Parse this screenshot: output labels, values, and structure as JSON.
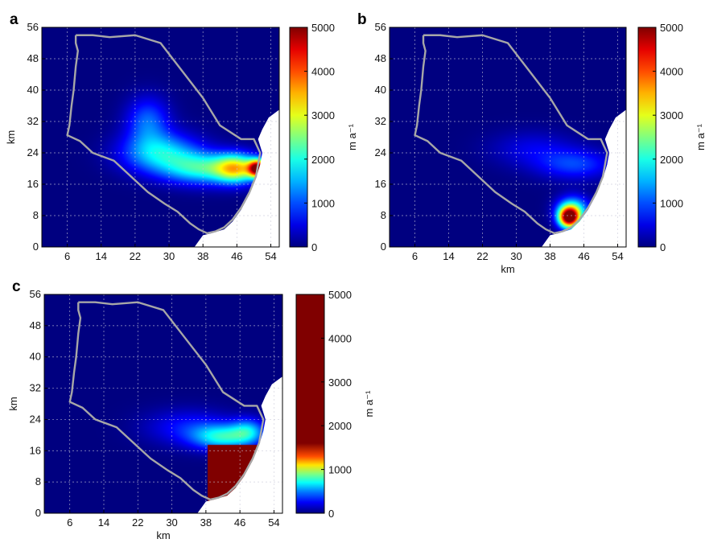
{
  "chart_data": [
    {
      "type": "heatmap",
      "panel_label": "a",
      "xlabel": "",
      "ylabel": "km",
      "xlim": [
        0,
        56
      ],
      "ylim": [
        0,
        56
      ],
      "xticks": [
        6,
        14,
        22,
        30,
        38,
        46,
        54
      ],
      "yticks": [
        0,
        8,
        16,
        24,
        32,
        40,
        48,
        56
      ],
      "grid": true,
      "colorbar": {
        "min": 0,
        "max": 5000,
        "ticks": [
          0,
          1000,
          2000,
          3000,
          4000,
          5000
        ],
        "label": "m a⁻¹",
        "colormap": "jet"
      },
      "field": {
        "background": 0,
        "blobs": [
          {
            "x": 51,
            "y": 20,
            "rx": 2.2,
            "ry": 2.2,
            "v": 4600
          },
          {
            "x": 46,
            "y": 20,
            "rx": 5,
            "ry": 3.6,
            "v": 2700
          },
          {
            "x": 38,
            "y": 20,
            "rx": 9,
            "ry": 4,
            "v": 1900
          },
          {
            "x": 28,
            "y": 24,
            "rx": 9,
            "ry": 5,
            "v": 1700
          },
          {
            "x": 25,
            "y": 32,
            "rx": 5,
            "ry": 6,
            "v": 1100
          }
        ]
      }
    },
    {
      "type": "heatmap",
      "panel_label": "b",
      "xlabel": "km",
      "ylabel": "",
      "xlim": [
        0,
        56
      ],
      "ylim": [
        0,
        56
      ],
      "xticks": [
        6,
        14,
        22,
        30,
        38,
        46,
        54
      ],
      "yticks": [
        0,
        8,
        16,
        24,
        32,
        40,
        48,
        56
      ],
      "grid": true,
      "colorbar": {
        "min": 0,
        "max": 5000,
        "ticks": [
          0,
          1000,
          2000,
          3000,
          4000,
          5000
        ],
        "label": "m a⁻¹",
        "colormap": "jet"
      },
      "field": {
        "background": 0,
        "blobs": [
          {
            "x": 42.5,
            "y": 7.5,
            "rx": 2.4,
            "ry": 2.6,
            "v": 4900
          },
          {
            "x": 43.5,
            "y": 9.5,
            "rx": 3.8,
            "ry": 3.4,
            "v": 1900
          },
          {
            "x": 44,
            "y": 21,
            "rx": 9,
            "ry": 3.8,
            "v": 900
          },
          {
            "x": 34,
            "y": 25,
            "rx": 10,
            "ry": 4.5,
            "v": 500
          }
        ]
      }
    },
    {
      "type": "heatmap",
      "panel_label": "c",
      "xlabel": "km",
      "ylabel": "km",
      "xlim": [
        0,
        56
      ],
      "ylim": [
        0,
        56
      ],
      "xticks": [
        6,
        14,
        22,
        30,
        38,
        46,
        54
      ],
      "yticks": [
        0,
        8,
        16,
        24,
        32,
        40,
        48,
        56
      ],
      "grid": true,
      "colorbar": {
        "min": 0,
        "max": 5000,
        "ticks": [
          0,
          1000,
          2000,
          3000,
          4000,
          5000
        ],
        "label": "m a⁻¹",
        "colormap": "jet"
      },
      "field": {
        "background": 0,
        "saturated_region": {
          "xmin": 38.5,
          "xmax": 52,
          "ymin": 3,
          "ymax": 17.5,
          "v": 5000
        },
        "blobs": [
          {
            "x": 42,
            "y": 19.5,
            "rx": 7,
            "ry": 3.2,
            "v": 1800
          },
          {
            "x": 48,
            "y": 21,
            "rx": 4,
            "ry": 3.2,
            "v": 1300
          },
          {
            "x": 34,
            "y": 22,
            "rx": 10,
            "ry": 4.5,
            "v": 700
          }
        ]
      }
    }
  ]
}
